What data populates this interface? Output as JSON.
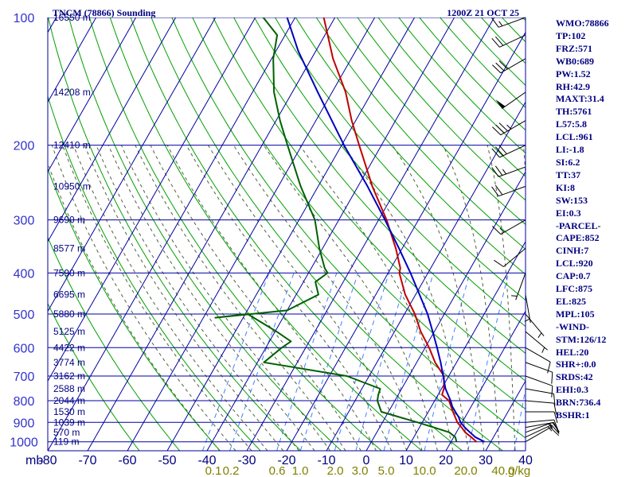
{
  "chart_data": {
    "type": "line",
    "title": "TNCM (78866) Sounding",
    "time_label": "1200Z 21 OCT 25",
    "pressure_axis": {
      "ticks": [
        100,
        200,
        300,
        400,
        500,
        600,
        700,
        800,
        900,
        1000
      ],
      "labels": [
        "100",
        "200",
        "300",
        "400",
        "500",
        "600",
        "700",
        "800",
        "900",
        "1000"
      ],
      "unit": "mb",
      "scale": "log",
      "range": [
        100,
        1050
      ]
    },
    "temperature_axis": {
      "ticks": [
        -80,
        -70,
        -60,
        -50,
        -40,
        -30,
        -20,
        -10,
        0,
        10,
        20,
        30,
        40
      ],
      "labels": [
        "-80",
        "-70",
        "-60",
        "-50",
        "-40",
        "-30",
        "-20",
        "-10",
        "0",
        "10",
        "20",
        "30",
        "40"
      ],
      "unit": "°C",
      "skew": true
    },
    "height_labels": [
      {
        "p": 100,
        "text": "16550 m"
      },
      {
        "p": 150,
        "text": "14208 m"
      },
      {
        "p": 200,
        "text": "12410 m"
      },
      {
        "p": 250,
        "text": "10950 m"
      },
      {
        "p": 300,
        "text": "9690 m"
      },
      {
        "p": 350,
        "text": "8577 m"
      },
      {
        "p": 400,
        "text": "7590 m"
      },
      {
        "p": 450,
        "text": "6695 m"
      },
      {
        "p": 500,
        "text": "5880 m"
      },
      {
        "p": 550,
        "text": "5125 m"
      },
      {
        "p": 600,
        "text": "4422 m"
      },
      {
        "p": 650,
        "text": "3774 m"
      },
      {
        "p": 700,
        "text": "3162 m"
      },
      {
        "p": 750,
        "text": "2588 m"
      },
      {
        "p": 800,
        "text": "2044 m"
      },
      {
        "p": 850,
        "text": "1530 m"
      },
      {
        "p": 900,
        "text": "1039 m"
      },
      {
        "p": 950,
        "text": "570 m"
      },
      {
        "p": 1000,
        "text": "119 m"
      }
    ],
    "mixing_ratio_labels": [
      "0.1",
      "0.2",
      "0.6",
      "1.0",
      "2.0",
      "3.0",
      "5.0",
      "10.0",
      "20.0",
      "40.0"
    ],
    "mixing_ratio_values": [
      0.1,
      0.2,
      0.6,
      1.0,
      2.0,
      3.0,
      5.0,
      10.0,
      20.0,
      40.0
    ],
    "mixing_ratio_unit": "g/kg",
    "series": [
      {
        "key": "temperature",
        "color": "#c00000",
        "points": [
          [
            1000,
            26.4
          ],
          [
            975,
            24.4
          ],
          [
            950,
            22.2
          ],
          [
            925,
            20.6
          ],
          [
            900,
            18.8
          ],
          [
            850,
            16.2
          ],
          [
            800,
            13.6
          ],
          [
            775,
            11.0
          ],
          [
            750,
            10.6
          ],
          [
            700,
            8.8
          ],
          [
            650,
            4.6
          ],
          [
            600,
            1.0
          ],
          [
            550,
            -3.4
          ],
          [
            500,
            -7.4
          ],
          [
            450,
            -12.6
          ],
          [
            400,
            -17.2
          ],
          [
            390,
            -17.6
          ],
          [
            350,
            -21.6
          ],
          [
            300,
            -28.0
          ],
          [
            250,
            -36.4
          ],
          [
            200,
            -45.6
          ],
          [
            175,
            -51.0
          ],
          [
            150,
            -56.6
          ],
          [
            125,
            -64.6
          ],
          [
            100,
            -72.8
          ]
        ]
      },
      {
        "key": "dewpoint",
        "color": "#006000",
        "points": [
          [
            1000,
            21.4
          ],
          [
            975,
            20.4
          ],
          [
            950,
            18.2
          ],
          [
            925,
            13.6
          ],
          [
            900,
            8.8
          ],
          [
            850,
            -1.8
          ],
          [
            800,
            -4.4
          ],
          [
            775,
            -5.0
          ],
          [
            750,
            -5.4
          ],
          [
            700,
            -15.6
          ],
          [
            650,
            -38.4
          ],
          [
            600,
            -36.0
          ],
          [
            580,
            -34.6
          ],
          [
            550,
            -39.6
          ],
          [
            500,
            -49.4
          ],
          [
            510,
            -57.0
          ],
          [
            490,
            -40.0
          ],
          [
            450,
            -34.4
          ],
          [
            420,
            -37.0
          ],
          [
            400,
            -35.2
          ],
          [
            390,
            -36.6
          ],
          [
            350,
            -40.8
          ],
          [
            300,
            -46.0
          ],
          [
            250,
            -54.4
          ],
          [
            200,
            -63.6
          ],
          [
            175,
            -69.0
          ],
          [
            150,
            -74.6
          ],
          [
            125,
            -79.6
          ],
          [
            110,
            -82.0
          ],
          [
            100,
            -88.0
          ]
        ]
      },
      {
        "key": "parcel",
        "color": "#0000c0",
        "points": [
          [
            1000,
            28.4
          ],
          [
            975,
            25.4
          ],
          [
            950,
            23.4
          ],
          [
            925,
            21.4
          ],
          [
            900,
            19.6
          ],
          [
            875,
            18.4
          ],
          [
            850,
            16.8
          ],
          [
            825,
            15.2
          ],
          [
            800,
            14.0
          ],
          [
            750,
            11.0
          ],
          [
            700,
            8.6
          ],
          [
            650,
            6.0
          ],
          [
            600,
            3.0
          ],
          [
            550,
            -0.4
          ],
          [
            500,
            -4.2
          ],
          [
            450,
            -9.0
          ],
          [
            400,
            -14.4
          ],
          [
            350,
            -20.8
          ],
          [
            300,
            -28.4
          ],
          [
            250,
            -37.6
          ],
          [
            200,
            -49.4
          ],
          [
            150,
            -63.6
          ],
          [
            120,
            -74.4
          ],
          [
            100,
            -82.0
          ]
        ]
      }
    ],
    "wind_barbs": [
      {
        "p": 1000,
        "dir": 60,
        "spd": 10
      },
      {
        "p": 975,
        "dir": 65,
        "spd": 15
      },
      {
        "p": 950,
        "dir": 70,
        "spd": 15
      },
      {
        "p": 925,
        "dir": 80,
        "spd": 15
      },
      {
        "p": 900,
        "dir": 85,
        "spd": 10
      },
      {
        "p": 850,
        "dir": 90,
        "spd": 10
      },
      {
        "p": 800,
        "dir": 95,
        "spd": 10
      },
      {
        "p": 750,
        "dir": 100,
        "spd": 10
      },
      {
        "p": 700,
        "dir": 110,
        "spd": 10
      },
      {
        "p": 650,
        "dir": 110,
        "spd": 10
      },
      {
        "p": 600,
        "dir": 120,
        "spd": 10
      },
      {
        "p": 550,
        "dir": 130,
        "spd": 5
      },
      {
        "p": 500,
        "dir": 140,
        "spd": 5
      },
      {
        "p": 450,
        "dir": 170,
        "spd": 5
      },
      {
        "p": 400,
        "dir": 200,
        "spd": 5
      },
      {
        "p": 350,
        "dir": 230,
        "spd": 10
      },
      {
        "p": 300,
        "dir": 240,
        "spd": 15
      },
      {
        "p": 250,
        "dir": 250,
        "spd": 20
      },
      {
        "p": 225,
        "dir": 250,
        "spd": 25
      },
      {
        "p": 200,
        "dir": 245,
        "spd": 30
      },
      {
        "p": 175,
        "dir": 240,
        "spd": 35
      },
      {
        "p": 150,
        "dir": 235,
        "spd": 50
      },
      {
        "p": 125,
        "dir": 240,
        "spd": 30
      },
      {
        "p": 110,
        "dir": 245,
        "spd": 20
      },
      {
        "p": 100,
        "dir": 250,
        "spd": 15
      }
    ]
  },
  "indices": [
    "WMO:78866",
    "TP:102",
    "FRZ:571",
    "WB0:689",
    "PW:1.52",
    "RH:42.9",
    "MAXT:31.4",
    "TH:5761",
    "L57:5.8",
    "LCL:961",
    "LI:-1.8",
    "SI:6.2",
    "TT:37",
    "KI:8",
    "SW:153",
    "EI:0.3",
    "-PARCEL-",
    "CAPE:852",
    "CINH:7",
    "LCL:920",
    "CAP:0.7",
    "LFC:875",
    "EL:825",
    "MPL:105",
    "-WIND-",
    "STM:126/12",
    "HEL:20",
    "SHR+:0.0",
    "SRDS:42",
    "EHI:0.3",
    "BRN:736.4",
    "BSHR:1"
  ],
  "colors": {
    "grid": "#0000a0",
    "dry_adiabat": "#00a000",
    "moist_adiabat": "#506040",
    "mixing_ratio": "#4080ff",
    "text": "#000080"
  }
}
